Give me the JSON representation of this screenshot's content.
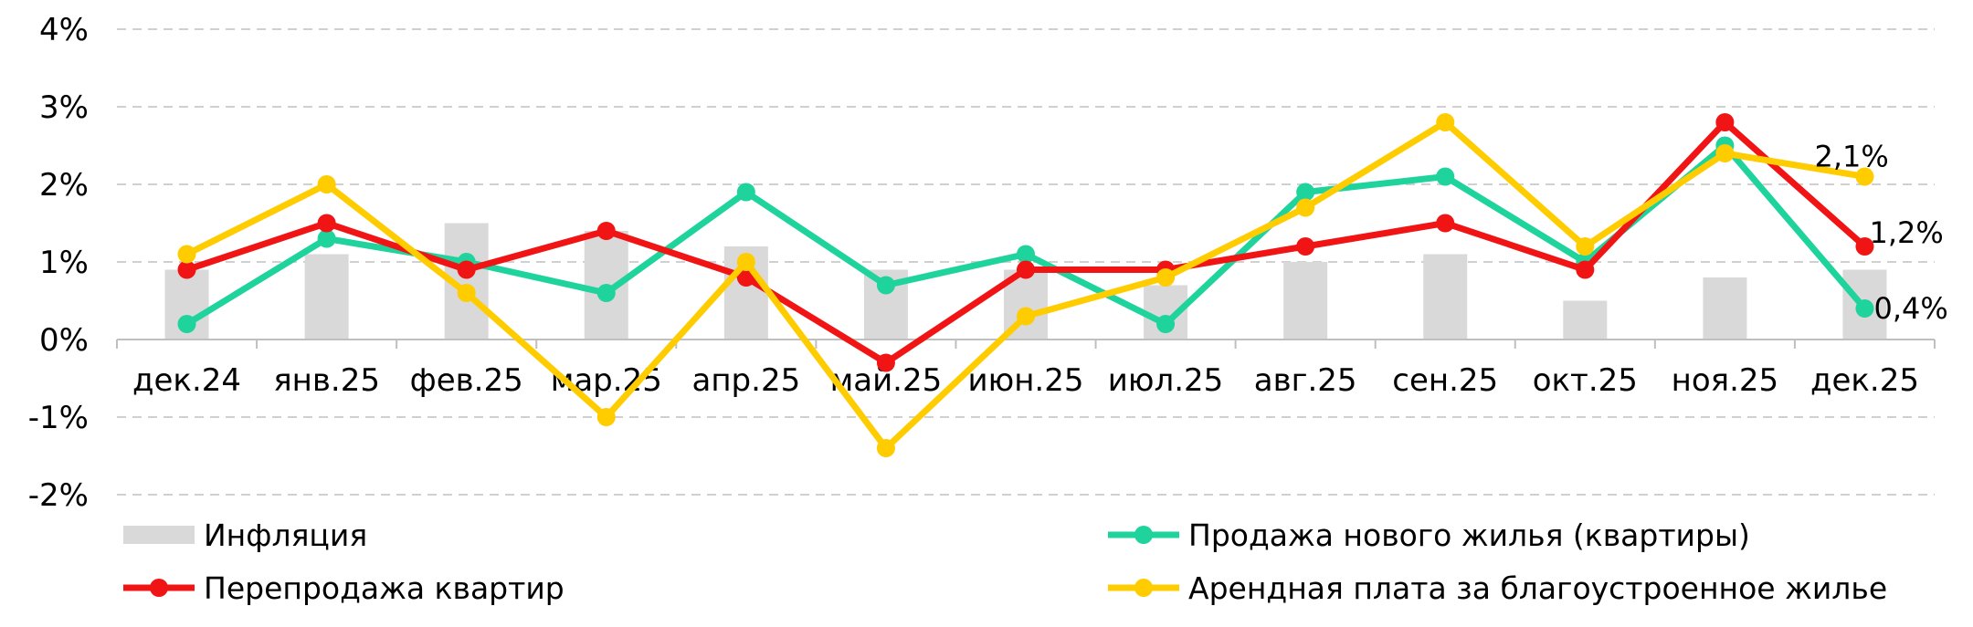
{
  "chart_data": {
    "type": "bar+line",
    "title": "",
    "xlabel": "",
    "ylabel": "",
    "categories": [
      "дек.24",
      "янв.25",
      "фев.25",
      "мар.25",
      "апр.25",
      "май.25",
      "июн.25",
      "июл.25",
      "авг.25",
      "сен.25",
      "окт.25",
      "ноя.25",
      "дек.25"
    ],
    "y_ticks": [
      "4%",
      "3%",
      "2%",
      "1%",
      "0%",
      "-1%",
      "-2%"
    ],
    "ylim": [
      -2,
      4
    ],
    "grid": true,
    "legend_position": "bottom",
    "series": [
      {
        "name": "Инфляция",
        "type": "bar",
        "color": "#d9d9d9",
        "values": [
          0.9,
          1.1,
          1.5,
          1.4,
          1.2,
          0.9,
          0.9,
          0.7,
          1.0,
          1.1,
          0.5,
          0.8,
          0.9
        ]
      },
      {
        "name": "Продажа нового жилья (квартиры)",
        "type": "line",
        "color": "#1fd39c",
        "values": [
          0.2,
          1.3,
          1.0,
          0.6,
          1.9,
          0.7,
          1.1,
          0.2,
          1.9,
          2.1,
          1.0,
          2.5,
          0.4
        ]
      },
      {
        "name": "Перепродажа квартир",
        "type": "line",
        "color": "#f01414",
        "values": [
          0.9,
          1.5,
          0.9,
          1.4,
          0.8,
          -0.3,
          0.9,
          0.9,
          1.2,
          1.5,
          0.9,
          2.8,
          1.2
        ]
      },
      {
        "name": "Арендная плата за благоустроенное жилье",
        "type": "line",
        "color": "#ffcc00",
        "values": [
          1.1,
          2.0,
          0.6,
          -1.0,
          1.0,
          -1.4,
          0.3,
          0.8,
          1.7,
          2.8,
          1.2,
          2.4,
          2.1
        ]
      }
    ],
    "data_labels": [
      "2,1%",
      "1,2%",
      "0,4%"
    ]
  }
}
